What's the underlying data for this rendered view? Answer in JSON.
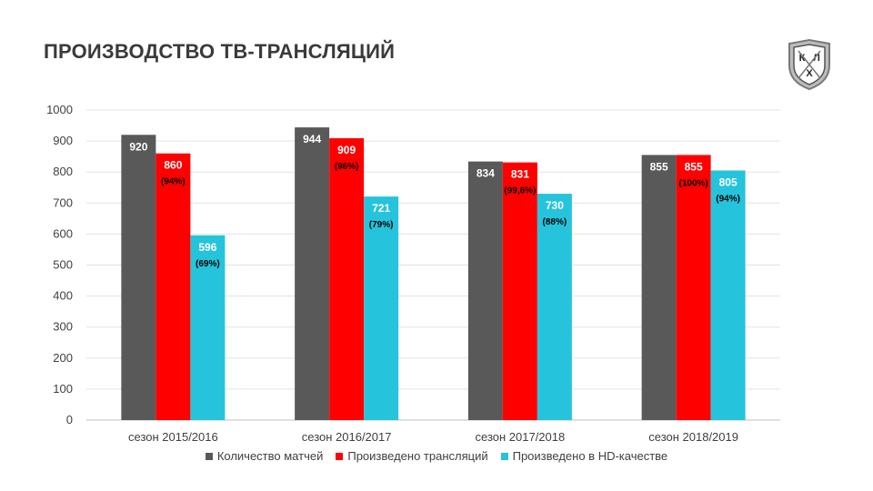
{
  "slide": {
    "title": "ПРОИЗВОДСТВО ТВ-ТРАНСЛЯЦИЙ",
    "logo_text": "КХЛ"
  },
  "chart_data": {
    "type": "bar",
    "title": "",
    "xlabel": "",
    "ylabel": "",
    "ylim": [
      0,
      1000
    ],
    "yticks": [
      0,
      100,
      200,
      300,
      400,
      500,
      600,
      700,
      800,
      900,
      1000
    ],
    "grid": true,
    "legend_position": "bottom",
    "categories": [
      "сезон 2015/2016",
      "сезон 2016/2017",
      "сезон 2017/2018",
      "сезон 2018/2019"
    ],
    "series": [
      {
        "name": "Количество матчей",
        "color": "#595959",
        "values": [
          920,
          944,
          834,
          855
        ],
        "percent_labels": [
          "",
          "",
          "",
          ""
        ]
      },
      {
        "name": "Произведено трансляций",
        "color": "#ff0000",
        "values": [
          860,
          909,
          831,
          855
        ],
        "percent_labels": [
          "(94%)",
          "(96%)",
          "(99,6%)",
          "(100%)"
        ]
      },
      {
        "name": "Произведено в HD-качестве",
        "color": "#26c4dc",
        "values": [
          596,
          721,
          730,
          805
        ],
        "percent_labels": [
          "(69%)",
          "(79%)",
          "(88%)",
          "(94%)"
        ]
      }
    ]
  }
}
